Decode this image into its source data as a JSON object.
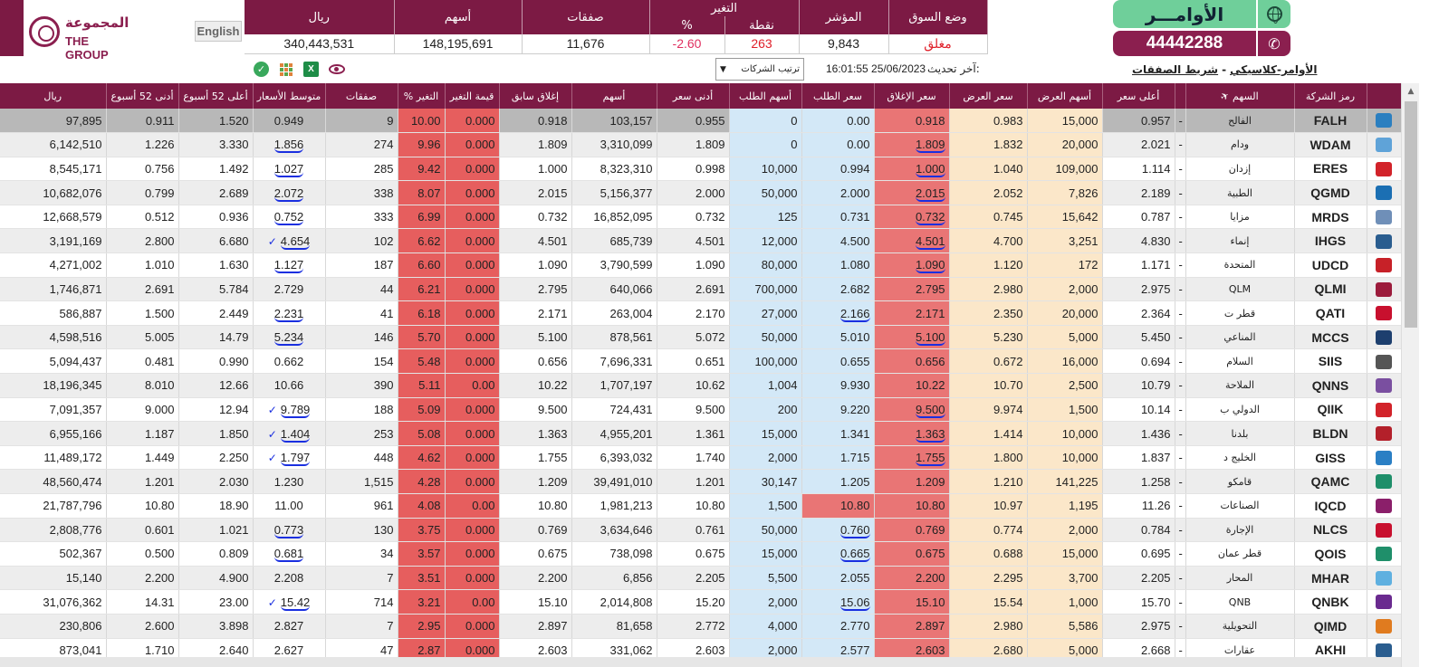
{
  "header": {
    "logo_ar": "المجموعة",
    "logo_en": "THE GROUP",
    "english_button": "English",
    "orders_button": "الأوامـــر",
    "phone_number": "44442288",
    "links": {
      "orders_classic": "الأوامر-كلاسيكي",
      "separator": "-",
      "trades_strip": "شريط الصفقات"
    },
    "last_update_label": "آخر تحديث:",
    "last_update_value": "16:01:55 25/06/2023",
    "sort_select": "ترتيب الشركات"
  },
  "market_summary": {
    "headers": {
      "riyal": "ريال",
      "shares": "أسهم",
      "trades": "صفقات",
      "change": "التغير",
      "change_pct": "%",
      "change_pts": "نقطة",
      "index": "المؤشر",
      "market_status": "وضع السوق"
    },
    "values": {
      "riyal": "340,443,531",
      "shares": "148,195,691",
      "trades": "11,676",
      "change_pct": "-2.60",
      "change_pts": "263",
      "index": "9,843",
      "market_status": "مغلق"
    }
  },
  "grid": {
    "columns": {
      "riyal": "ريال",
      "low52": "أدنى 52 أسبوع",
      "high52": "أعلى 52 أسبوع",
      "avg_price": "متوسط الأسعار",
      "trades": "صفقات",
      "change_pct": "% التغير",
      "change_value": "قيمة التغير",
      "prev_close": "إغلاق سابق",
      "shares": "أسهم",
      "low": "أدنى سعر",
      "bid_qty": "أسهم الطلب",
      "bid": "سعر الطلب",
      "close": "سعر الإغلاق",
      "ask": "سعر العرض",
      "ask_qty": "أسهم العرض",
      "high": "أعلى سعر",
      "stock": "السهم",
      "symbol": "رمز الشركة"
    },
    "rows": [
      {
        "riyal": "97,895",
        "low52": "0.911",
        "high52": "1.520",
        "avg": "0.949",
        "trades": "9",
        "pct": "10.00",
        "chg": "0.000",
        "prev": "0.918",
        "shares": "103,157",
        "low": "0.955",
        "bidq": "0",
        "bid": "0.00",
        "close": "0.918",
        "ask": "0.983",
        "askq": "15,000",
        "high": "0.957",
        "dash": "-",
        "name": "الفالح",
        "sym": "FALH",
        "logo_color": "#2b7fc0"
      },
      {
        "riyal": "6,142,510",
        "low52": "1.226",
        "high52": "3.330",
        "avg": "1.856",
        "trades": "274",
        "pct": "9.96",
        "chg": "0.000",
        "prev": "1.809",
        "shares": "3,310,099",
        "low": "1.809",
        "bidq": "0",
        "bid": "0.00",
        "close": "1.809",
        "ask": "1.832",
        "askq": "20,000",
        "high": "2.021",
        "dash": "-",
        "name": "ودام",
        "sym": "WDAM",
        "logo_color": "#5fa3d8"
      },
      {
        "riyal": "8,545,171",
        "low52": "0.756",
        "high52": "1.492",
        "avg": "1.027",
        "trades": "285",
        "pct": "9.42",
        "chg": "0.000",
        "prev": "1.000",
        "shares": "8,323,310",
        "low": "0.998",
        "bidq": "10,000",
        "bid": "0.994",
        "close": "1.000",
        "ask": "1.040",
        "askq": "109,000",
        "high": "1.114",
        "dash": "-",
        "name": "إزدان",
        "sym": "ERES",
        "logo_color": "#d2232a"
      },
      {
        "riyal": "10,682,076",
        "low52": "0.799",
        "high52": "2.689",
        "avg": "2.072",
        "trades": "338",
        "pct": "8.07",
        "chg": "0.000",
        "prev": "2.015",
        "shares": "5,156,377",
        "low": "2.000",
        "bidq": "50,000",
        "bid": "2.000",
        "close": "2.015",
        "ask": "2.052",
        "askq": "7,826",
        "high": "2.189",
        "dash": "-",
        "name": "الطبية",
        "sym": "QGMD",
        "logo_color": "#1b6fb3"
      },
      {
        "riyal": "12,668,579",
        "low52": "0.512",
        "high52": "0.936",
        "avg": "0.752",
        "trades": "333",
        "pct": "6.99",
        "chg": "0.000",
        "prev": "0.732",
        "shares": "16,852,095",
        "low": "0.732",
        "bidq": "125",
        "bid": "0.731",
        "close": "0.732",
        "ask": "0.745",
        "askq": "15,642",
        "high": "0.787",
        "dash": "-",
        "name": "مزايا",
        "sym": "MRDS",
        "logo_color": "#6f8fb8"
      },
      {
        "riyal": "3,191,169",
        "low52": "2.800",
        "high52": "6.680",
        "avg": "4.654",
        "trades": "102",
        "pct": "6.62",
        "chg": "0.000",
        "prev": "4.501",
        "shares": "685,739",
        "low": "4.501",
        "bidq": "12,000",
        "bid": "4.500",
        "close": "4.501",
        "ask": "4.700",
        "askq": "3,251",
        "high": "4.830",
        "dash": "-",
        "name": "إنماء",
        "sym": "IHGS",
        "logo_color": "#2a5d8f"
      },
      {
        "riyal": "4,271,002",
        "low52": "1.010",
        "high52": "1.630",
        "avg": "1.127",
        "trades": "187",
        "pct": "6.60",
        "chg": "0.000",
        "prev": "1.090",
        "shares": "3,790,599",
        "low": "1.090",
        "bidq": "80,000",
        "bid": "1.080",
        "close": "1.090",
        "ask": "1.120",
        "askq": "172",
        "high": "1.171",
        "dash": "-",
        "name": "المتحدة",
        "sym": "UDCD",
        "logo_color": "#c72128"
      },
      {
        "riyal": "1,746,871",
        "low52": "2.691",
        "high52": "5.784",
        "avg": "2.729",
        "trades": "44",
        "pct": "6.21",
        "chg": "0.000",
        "prev": "2.795",
        "shares": "640,066",
        "low": "2.691",
        "bidq": "700,000",
        "bid": "2.682",
        "close": "2.795",
        "ask": "2.980",
        "askq": "2,000",
        "high": "2.975",
        "dash": "-",
        "name": "QLM",
        "sym": "QLMI",
        "logo_color": "#9c1c3c"
      },
      {
        "riyal": "586,887",
        "low52": "1.500",
        "high52": "2.449",
        "avg": "2.231",
        "trades": "41",
        "pct": "6.18",
        "chg": "0.000",
        "prev": "2.171",
        "shares": "263,004",
        "low": "2.170",
        "bidq": "27,000",
        "bid": "2.166",
        "close": "2.171",
        "ask": "2.350",
        "askq": "20,000",
        "high": "2.364",
        "dash": "-",
        "name": "قطر ت",
        "sym": "QATI",
        "logo_color": "#c8102e"
      },
      {
        "riyal": "4,598,516",
        "low52": "5.005",
        "high52": "14.79",
        "avg": "5.234",
        "trades": "146",
        "pct": "5.70",
        "chg": "0.000",
        "prev": "5.100",
        "shares": "878,561",
        "low": "5.072",
        "bidq": "50,000",
        "bid": "5.010",
        "close": "5.100",
        "ask": "5.230",
        "askq": "5,000",
        "high": "5.450",
        "dash": "-",
        "name": "المناعي",
        "sym": "MCCS",
        "logo_color": "#1d3f6e"
      },
      {
        "riyal": "5,094,437",
        "low52": "0.481",
        "high52": "0.990",
        "avg": "0.662",
        "trades": "154",
        "pct": "5.48",
        "chg": "0.000",
        "prev": "0.656",
        "shares": "7,696,331",
        "low": "0.651",
        "bidq": "100,000",
        "bid": "0.655",
        "close": "0.656",
        "ask": "0.672",
        "askq": "16,000",
        "high": "0.694",
        "dash": "-",
        "name": "السلام",
        "sym": "SIIS",
        "logo_color": "#555555"
      },
      {
        "riyal": "18,196,345",
        "low52": "8.010",
        "high52": "12.66",
        "avg": "10.66",
        "trades": "390",
        "pct": "5.11",
        "chg": "0.00",
        "prev": "10.22",
        "shares": "1,707,197",
        "low": "10.62",
        "bidq": "1,004",
        "bid": "9.930",
        "close": "10.22",
        "ask": "10.70",
        "askq": "2,500",
        "high": "10.79",
        "dash": "-",
        "name": "الملاحة",
        "sym": "QNNS",
        "logo_color": "#7a4fa0"
      },
      {
        "riyal": "7,091,357",
        "low52": "9.000",
        "high52": "12.94",
        "avg": "9.789",
        "trades": "188",
        "pct": "5.09",
        "chg": "0.000",
        "prev": "9.500",
        "shares": "724,431",
        "low": "9.500",
        "bidq": "200",
        "bid": "9.220",
        "close": "9.500",
        "ask": "9.974",
        "askq": "1,500",
        "high": "10.14",
        "dash": "-",
        "name": "الدولي ب",
        "sym": "QIIK",
        "logo_color": "#d2232a"
      },
      {
        "riyal": "6,955,166",
        "low52": "1.187",
        "high52": "1.850",
        "avg": "1.404",
        "trades": "253",
        "pct": "5.08",
        "chg": "0.000",
        "prev": "1.363",
        "shares": "4,955,201",
        "low": "1.361",
        "bidq": "15,000",
        "bid": "1.341",
        "close": "1.363",
        "ask": "1.414",
        "askq": "10,000",
        "high": "1.436",
        "dash": "-",
        "name": "بلدنا",
        "sym": "BLDN",
        "logo_color": "#b3202a"
      },
      {
        "riyal": "11,489,172",
        "low52": "1.449",
        "high52": "2.250",
        "avg": "1.797",
        "trades": "448",
        "pct": "4.62",
        "chg": "0.000",
        "prev": "1.755",
        "shares": "6,393,032",
        "low": "1.740",
        "bidq": "2,000",
        "bid": "1.715",
        "close": "1.755",
        "ask": "1.800",
        "askq": "10,000",
        "high": "1.837",
        "dash": "-",
        "name": "الخليج د",
        "sym": "GISS",
        "logo_color": "#2a7fc4"
      },
      {
        "riyal": "48,560,474",
        "low52": "1.201",
        "high52": "2.030",
        "avg": "1.230",
        "trades": "1,515",
        "pct": "4.28",
        "chg": "0.000",
        "prev": "1.209",
        "shares": "39,491,010",
        "low": "1.201",
        "bidq": "30,147",
        "bid": "1.205",
        "close": "1.209",
        "ask": "1.210",
        "askq": "141,225",
        "high": "1.258",
        "dash": "-",
        "name": "قامكو",
        "sym": "QAMC",
        "logo_color": "#1f8f6a"
      },
      {
        "riyal": "21,787,796",
        "low52": "10.80",
        "high52": "18.90",
        "avg": "11.00",
        "trades": "961",
        "pct": "4.08",
        "chg": "0.00",
        "prev": "10.80",
        "shares": "1,981,213",
        "low": "10.80",
        "bidq": "1,500",
        "bid": "10.80",
        "close": "10.80",
        "ask": "10.97",
        "askq": "1,195",
        "high": "11.26",
        "dash": "-",
        "name": "الصناعات",
        "sym": "IQCD",
        "logo_color": "#8b1f6a"
      },
      {
        "riyal": "2,808,776",
        "low52": "0.601",
        "high52": "1.021",
        "avg": "0.773",
        "trades": "130",
        "pct": "3.75",
        "chg": "0.000",
        "prev": "0.769",
        "shares": "3,634,646",
        "low": "0.761",
        "bidq": "50,000",
        "bid": "0.760",
        "close": "0.769",
        "ask": "0.774",
        "askq": "2,000",
        "high": "0.784",
        "dash": "-",
        "name": "الإجارة",
        "sym": "NLCS",
        "logo_color": "#c8102e"
      },
      {
        "riyal": "502,367",
        "low52": "0.500",
        "high52": "0.809",
        "avg": "0.681",
        "trades": "34",
        "pct": "3.57",
        "chg": "0.000",
        "prev": "0.675",
        "shares": "738,098",
        "low": "0.675",
        "bidq": "15,000",
        "bid": "0.665",
        "close": "0.675",
        "ask": "0.688",
        "askq": "15,000",
        "high": "0.695",
        "dash": "-",
        "name": "قطر عمان",
        "sym": "QOIS",
        "logo_color": "#1f8f6a"
      },
      {
        "riyal": "15,140",
        "low52": "2.200",
        "high52": "4.900",
        "avg": "2.208",
        "trades": "7",
        "pct": "3.51",
        "chg": "0.000",
        "prev": "2.200",
        "shares": "6,856",
        "low": "2.205",
        "bidq": "5,500",
        "bid": "2.055",
        "close": "2.200",
        "ask": "2.295",
        "askq": "3,700",
        "high": "2.205",
        "dash": "-",
        "name": "المحار",
        "sym": "MHAR",
        "logo_color": "#5fb0e0"
      },
      {
        "riyal": "31,076,362",
        "low52": "14.31",
        "high52": "23.00",
        "avg": "15.42",
        "trades": "714",
        "pct": "3.21",
        "chg": "0.00",
        "prev": "15.10",
        "shares": "2,014,808",
        "low": "15.20",
        "bidq": "2,000",
        "bid": "15.06",
        "close": "15.10",
        "ask": "15.54",
        "askq": "1,000",
        "high": "15.70",
        "dash": "-",
        "name": "QNB",
        "sym": "QNBK",
        "logo_color": "#6a2a8f"
      },
      {
        "riyal": "230,806",
        "low52": "2.600",
        "high52": "3.898",
        "avg": "2.827",
        "trades": "7",
        "pct": "2.95",
        "chg": "0.000",
        "prev": "2.897",
        "shares": "81,658",
        "low": "2.772",
        "bidq": "4,000",
        "bid": "2.770",
        "close": "2.897",
        "ask": "2.980",
        "askq": "5,586",
        "high": "2.975",
        "dash": "-",
        "name": "التحويلية",
        "sym": "QIMD",
        "logo_color": "#e07b1f"
      },
      {
        "riyal": "873,041",
        "low52": "1.710",
        "high52": "2.640",
        "avg": "2.627",
        "trades": "47",
        "pct": "2.87",
        "chg": "0.000",
        "prev": "2.603",
        "shares": "331,062",
        "low": "2.603",
        "bidq": "2,000",
        "bid": "2.577",
        "close": "2.603",
        "ask": "2.680",
        "askq": "5,000",
        "high": "2.668",
        "dash": "-",
        "name": "عقارات",
        "sym": "AKHI",
        "logo_color": "#2a5d8f"
      }
    ]
  }
}
